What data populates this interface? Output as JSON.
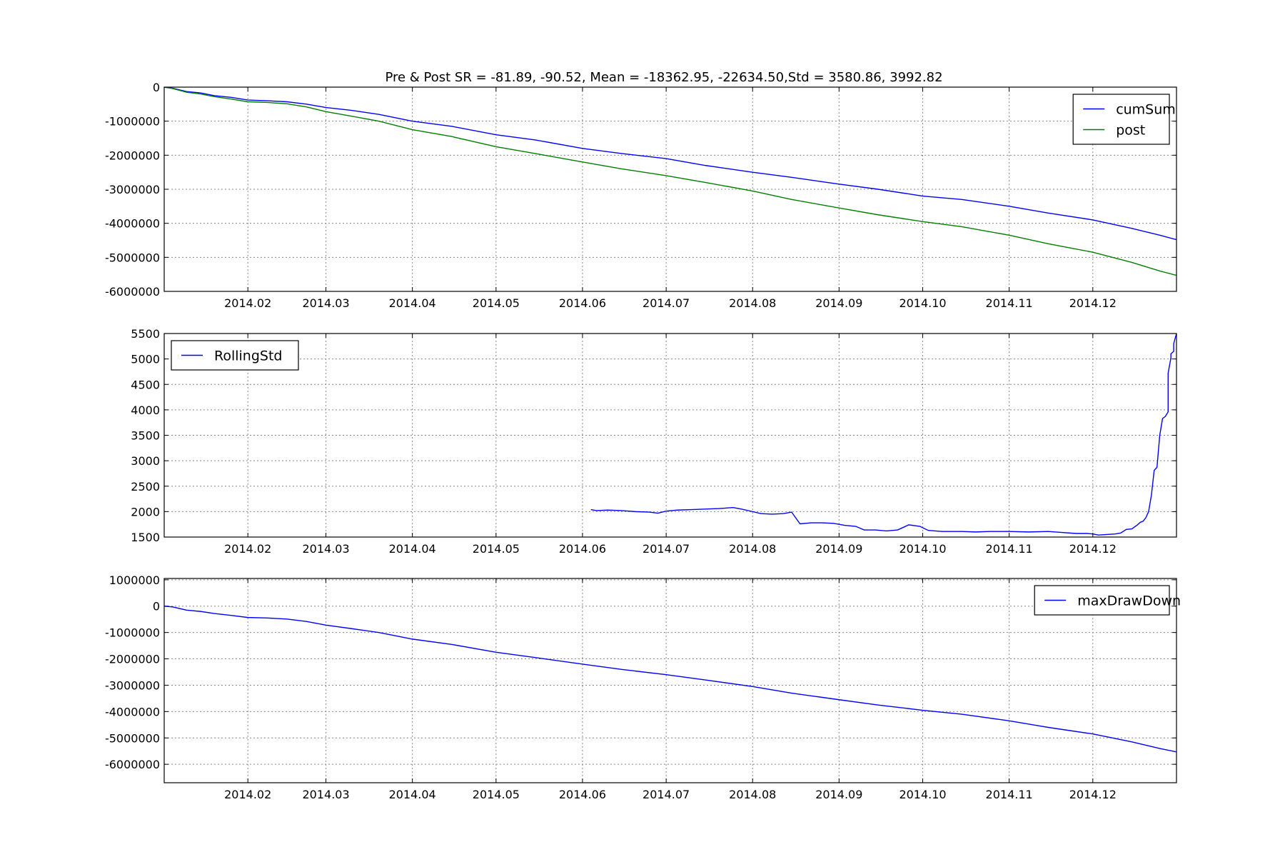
{
  "figure": {
    "title": "Pre & Post SR = -81.89, -90.52, Mean = -18362.95, -22634.50,Std = 3580.86, 3992.82"
  },
  "chart_data": [
    {
      "type": "line",
      "title": "Pre & Post SR = -81.89, -90.52, Mean = -18362.95, -22634.50,Std = 3580.86, 3992.82",
      "xlabel": "",
      "ylabel": "",
      "xlim": [
        "2014-01-02",
        "2014-12-31"
      ],
      "ylim": [
        -6000000,
        0
      ],
      "yticks": [
        0,
        -1000000,
        -2000000,
        -3000000,
        -4000000,
        -5000000,
        -6000000
      ],
      "ytick_labels": [
        "0",
        "-1000000",
        "-2000000",
        "-3000000",
        "-4000000",
        "-5000000",
        "-6000000"
      ],
      "xticks": [
        "2014-02-01",
        "2014-03-01",
        "2014-04-01",
        "2014-05-01",
        "2014-06-01",
        "2014-07-01",
        "2014-08-01",
        "2014-09-01",
        "2014-10-01",
        "2014-11-01",
        "2014-12-01"
      ],
      "xtick_labels": [
        "2014.02",
        "2014.03",
        "2014.04",
        "2014.05",
        "2014.06",
        "2014.07",
        "2014.08",
        "2014.09",
        "2014.10",
        "2014.11",
        "2014.12"
      ],
      "grid": true,
      "legend": "top-right",
      "series": [
        {
          "name": "cumSum",
          "color": "#0000ff",
          "points": [
            [
              "2014-01-02",
              0
            ],
            [
              "2014-01-05",
              -30000
            ],
            [
              "2014-01-10",
              -130000
            ],
            [
              "2014-01-15",
              -170000
            ],
            [
              "2014-01-20",
              -250000
            ],
            [
              "2014-01-26",
              -300000
            ],
            [
              "2014-02-01",
              -380000
            ],
            [
              "2014-02-08",
              -400000
            ],
            [
              "2014-02-15",
              -430000
            ],
            [
              "2014-02-22",
              -500000
            ],
            [
              "2014-03-01",
              -600000
            ],
            [
              "2014-03-10",
              -680000
            ],
            [
              "2014-03-20",
              -800000
            ],
            [
              "2014-04-01",
              -1000000
            ],
            [
              "2014-04-15",
              -1150000
            ],
            [
              "2014-05-01",
              -1400000
            ],
            [
              "2014-05-15",
              -1550000
            ],
            [
              "2014-06-01",
              -1800000
            ],
            [
              "2014-06-15",
              -1950000
            ],
            [
              "2014-07-01",
              -2100000
            ],
            [
              "2014-07-15",
              -2300000
            ],
            [
              "2014-08-01",
              -2500000
            ],
            [
              "2014-08-15",
              -2650000
            ],
            [
              "2014-09-01",
              -2850000
            ],
            [
              "2014-09-15",
              -3000000
            ],
            [
              "2014-10-01",
              -3200000
            ],
            [
              "2014-10-15",
              -3300000
            ],
            [
              "2014-11-01",
              -3500000
            ],
            [
              "2014-11-15",
              -3700000
            ],
            [
              "2014-12-01",
              -3900000
            ],
            [
              "2014-12-15",
              -4150000
            ],
            [
              "2014-12-25",
              -4350000
            ],
            [
              "2014-12-31",
              -4480000
            ]
          ]
        },
        {
          "name": "post",
          "color": "#008000",
          "points": [
            [
              "2014-01-02",
              0
            ],
            [
              "2014-01-05",
              -40000
            ],
            [
              "2014-01-10",
              -150000
            ],
            [
              "2014-01-15",
              -200000
            ],
            [
              "2014-01-20",
              -280000
            ],
            [
              "2014-01-26",
              -350000
            ],
            [
              "2014-02-01",
              -430000
            ],
            [
              "2014-02-08",
              -450000
            ],
            [
              "2014-02-15",
              -490000
            ],
            [
              "2014-02-22",
              -580000
            ],
            [
              "2014-03-01",
              -720000
            ],
            [
              "2014-03-10",
              -850000
            ],
            [
              "2014-03-20",
              -1000000
            ],
            [
              "2014-04-01",
              -1250000
            ],
            [
              "2014-04-15",
              -1450000
            ],
            [
              "2014-05-01",
              -1750000
            ],
            [
              "2014-05-15",
              -1950000
            ],
            [
              "2014-06-01",
              -2200000
            ],
            [
              "2014-06-15",
              -2400000
            ],
            [
              "2014-07-01",
              -2600000
            ],
            [
              "2014-07-15",
              -2800000
            ],
            [
              "2014-08-01",
              -3050000
            ],
            [
              "2014-08-15",
              -3300000
            ],
            [
              "2014-09-01",
              -3550000
            ],
            [
              "2014-09-15",
              -3750000
            ],
            [
              "2014-10-01",
              -3950000
            ],
            [
              "2014-10-15",
              -4100000
            ],
            [
              "2014-11-01",
              -4350000
            ],
            [
              "2014-11-15",
              -4600000
            ],
            [
              "2014-12-01",
              -4850000
            ],
            [
              "2014-12-15",
              -5150000
            ],
            [
              "2014-12-25",
              -5400000
            ],
            [
              "2014-12-31",
              -5530000
            ]
          ]
        }
      ]
    },
    {
      "type": "line",
      "title": "",
      "xlabel": "",
      "ylabel": "",
      "xlim": [
        "2014-01-02",
        "2014-12-31"
      ],
      "ylim": [
        1500,
        5500
      ],
      "yticks": [
        5500,
        5000,
        4500,
        4000,
        3500,
        3000,
        2500,
        2000,
        1500
      ],
      "ytick_labels": [
        "5500",
        "5000",
        "4500",
        "4000",
        "3500",
        "3000",
        "2500",
        "2000",
        "1500"
      ],
      "xticks": [
        "2014-02-01",
        "2014-03-01",
        "2014-04-01",
        "2014-05-01",
        "2014-06-01",
        "2014-07-01",
        "2014-08-01",
        "2014-09-01",
        "2014-10-01",
        "2014-11-01",
        "2014-12-01"
      ],
      "xtick_labels": [
        "2014.02",
        "2014.03",
        "2014.04",
        "2014.05",
        "2014.06",
        "2014.07",
        "2014.08",
        "2014.09",
        "2014.10",
        "2014.11",
        "2014.12"
      ],
      "grid": true,
      "legend": "top-left",
      "series": [
        {
          "name": "RollingStd",
          "color": "#0000ff",
          "points": [
            [
              "2014-06-04",
              2040
            ],
            [
              "2014-06-06",
              2020
            ],
            [
              "2014-06-10",
              2030
            ],
            [
              "2014-06-15",
              2020
            ],
            [
              "2014-06-20",
              2000
            ],
            [
              "2014-06-25",
              1990
            ],
            [
              "2014-06-28",
              1970
            ],
            [
              "2014-07-01",
              2010
            ],
            [
              "2014-07-05",
              2030
            ],
            [
              "2014-07-10",
              2040
            ],
            [
              "2014-07-15",
              2050
            ],
            [
              "2014-07-20",
              2060
            ],
            [
              "2014-07-25",
              2080
            ],
            [
              "2014-07-28",
              2050
            ],
            [
              "2014-08-01",
              2000
            ],
            [
              "2014-08-04",
              1960
            ],
            [
              "2014-08-08",
              1950
            ],
            [
              "2014-08-12",
              1960
            ],
            [
              "2014-08-15",
              1990
            ],
            [
              "2014-08-18",
              1760
            ],
            [
              "2014-08-22",
              1780
            ],
            [
              "2014-08-26",
              1780
            ],
            [
              "2014-08-30",
              1770
            ],
            [
              "2014-09-03",
              1730
            ],
            [
              "2014-09-07",
              1710
            ],
            [
              "2014-09-10",
              1640
            ],
            [
              "2014-09-14",
              1640
            ],
            [
              "2014-09-18",
              1620
            ],
            [
              "2014-09-22",
              1640
            ],
            [
              "2014-09-26",
              1740
            ],
            [
              "2014-09-30",
              1710
            ],
            [
              "2014-10-03",
              1630
            ],
            [
              "2014-10-08",
              1610
            ],
            [
              "2014-10-15",
              1610
            ],
            [
              "2014-10-20",
              1600
            ],
            [
              "2014-10-25",
              1610
            ],
            [
              "2014-11-01",
              1610
            ],
            [
              "2014-11-08",
              1600
            ],
            [
              "2014-11-15",
              1610
            ],
            [
              "2014-11-20",
              1590
            ],
            [
              "2014-11-25",
              1570
            ],
            [
              "2014-11-29",
              1570
            ],
            [
              "2014-12-01",
              1560
            ],
            [
              "2014-12-03",
              1540
            ],
            [
              "2014-12-06",
              1550
            ],
            [
              "2014-12-09",
              1560
            ],
            [
              "2014-12-11",
              1580
            ],
            [
              "2014-12-13",
              1650
            ],
            [
              "2014-12-15",
              1660
            ],
            [
              "2014-12-17",
              1740
            ],
            [
              "2014-12-18",
              1790
            ],
            [
              "2014-12-19",
              1810
            ],
            [
              "2014-12-20",
              1880
            ],
            [
              "2014-12-21",
              2000
            ],
            [
              "2014-12-22",
              2320
            ],
            [
              "2014-12-23",
              2810
            ],
            [
              "2014-12-24",
              2870
            ],
            [
              "2014-12-25",
              3500
            ],
            [
              "2014-12-26",
              3830
            ],
            [
              "2014-12-27",
              3870
            ],
            [
              "2014-12-28",
              3960
            ],
            [
              "2014-12-28",
              4720
            ],
            [
              "2014-12-29",
              5020
            ],
            [
              "2014-12-29",
              5100
            ],
            [
              "2014-12-30",
              5150
            ],
            [
              "2014-12-30",
              5300
            ],
            [
              "2014-12-31",
              5500
            ]
          ]
        }
      ]
    },
    {
      "type": "line",
      "title": "",
      "xlabel": "",
      "ylabel": "",
      "xlim": [
        "2014-01-02",
        "2014-12-31"
      ],
      "ylim": [
        -6700000,
        1050000
      ],
      "yticks": [
        1000000,
        0,
        -1000000,
        -2000000,
        -3000000,
        -4000000,
        -5000000,
        -6000000
      ],
      "ytick_labels": [
        "1000000",
        "0",
        "-1000000",
        "-2000000",
        "-3000000",
        "-4000000",
        "-5000000",
        "-6000000"
      ],
      "xticks": [
        "2014-02-01",
        "2014-03-01",
        "2014-04-01",
        "2014-05-01",
        "2014-06-01",
        "2014-07-01",
        "2014-08-01",
        "2014-09-01",
        "2014-10-01",
        "2014-11-01",
        "2014-12-01"
      ],
      "xtick_labels": [
        "2014.02",
        "2014.03",
        "2014.04",
        "2014.05",
        "2014.06",
        "2014.07",
        "2014.08",
        "2014.09",
        "2014.10",
        "2014.11",
        "2014.12"
      ],
      "grid": true,
      "legend": "top-right",
      "series": [
        {
          "name": "maxDrawDown",
          "color": "#0000ff",
          "points": [
            [
              "2014-01-02",
              0
            ],
            [
              "2014-01-05",
              -30000
            ],
            [
              "2014-01-10",
              -150000
            ],
            [
              "2014-01-15",
              -200000
            ],
            [
              "2014-01-20",
              -280000
            ],
            [
              "2014-01-26",
              -350000
            ],
            [
              "2014-02-01",
              -430000
            ],
            [
              "2014-02-08",
              -450000
            ],
            [
              "2014-02-15",
              -490000
            ],
            [
              "2014-02-22",
              -580000
            ],
            [
              "2014-03-01",
              -720000
            ],
            [
              "2014-03-10",
              -850000
            ],
            [
              "2014-03-20",
              -1000000
            ],
            [
              "2014-04-01",
              -1250000
            ],
            [
              "2014-04-15",
              -1450000
            ],
            [
              "2014-05-01",
              -1750000
            ],
            [
              "2014-05-15",
              -1950000
            ],
            [
              "2014-06-01",
              -2200000
            ],
            [
              "2014-06-15",
              -2400000
            ],
            [
              "2014-07-01",
              -2600000
            ],
            [
              "2014-07-15",
              -2800000
            ],
            [
              "2014-08-01",
              -3050000
            ],
            [
              "2014-08-15",
              -3300000
            ],
            [
              "2014-09-01",
              -3550000
            ],
            [
              "2014-09-15",
              -3750000
            ],
            [
              "2014-10-01",
              -3950000
            ],
            [
              "2014-10-15",
              -4100000
            ],
            [
              "2014-11-01",
              -4350000
            ],
            [
              "2014-11-15",
              -4600000
            ],
            [
              "2014-12-01",
              -4850000
            ],
            [
              "2014-12-15",
              -5150000
            ],
            [
              "2014-12-25",
              -5400000
            ],
            [
              "2014-12-31",
              -5530000
            ]
          ]
        }
      ]
    }
  ]
}
